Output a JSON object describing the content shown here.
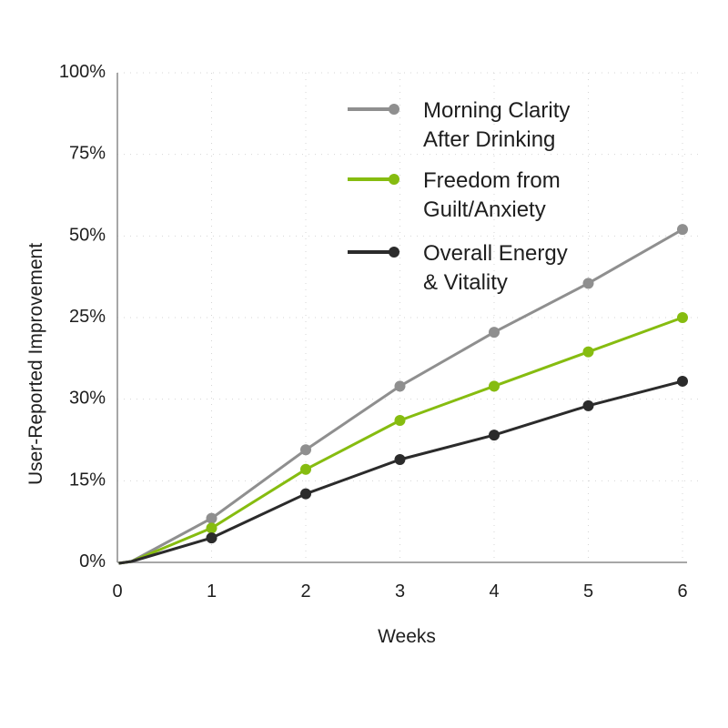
{
  "chart_data": {
    "type": "line",
    "title": "",
    "xlabel": "Weeks",
    "ylabel": "User-Reported Improvement",
    "x": [
      1,
      2,
      3,
      4,
      5,
      6
    ],
    "x_start": 0.15,
    "xlim": [
      0,
      6
    ],
    "ylim": [
      0,
      100
    ],
    "x_ticks": [
      "0",
      "1",
      "2",
      "3",
      "4",
      "5",
      "6"
    ],
    "y_ticks": [
      "0%",
      "15%",
      "30%",
      "25%",
      "50%",
      "75%",
      "100%"
    ],
    "y_tick_note": "Tick labels printed as shown (evenly spaced, non-monotonic)",
    "grid": true,
    "grid_style": "dotted",
    "legend_position": "top-right",
    "series": [
      {
        "name": "Morning Clarity After Drinking",
        "legend_lines": [
          "Morning Clarity",
          "After Drinking"
        ],
        "color": "#8f8f8f",
        "values": [
          9,
          23,
          36,
          47,
          57,
          68
        ]
      },
      {
        "name": "Freedom from Guilt/Anxiety",
        "legend_lines": [
          "Freedom from",
          "Guilt/Anxiety"
        ],
        "color": "#86bc10",
        "values": [
          7,
          19,
          29,
          36,
          43,
          50
        ]
      },
      {
        "name": "Overall Energy & Vitality",
        "legend_lines": [
          "Overall Energy",
          "& Vitality"
        ],
        "color": "#2b2b2b",
        "values": [
          5,
          14,
          21,
          26,
          32,
          37
        ]
      }
    ]
  }
}
